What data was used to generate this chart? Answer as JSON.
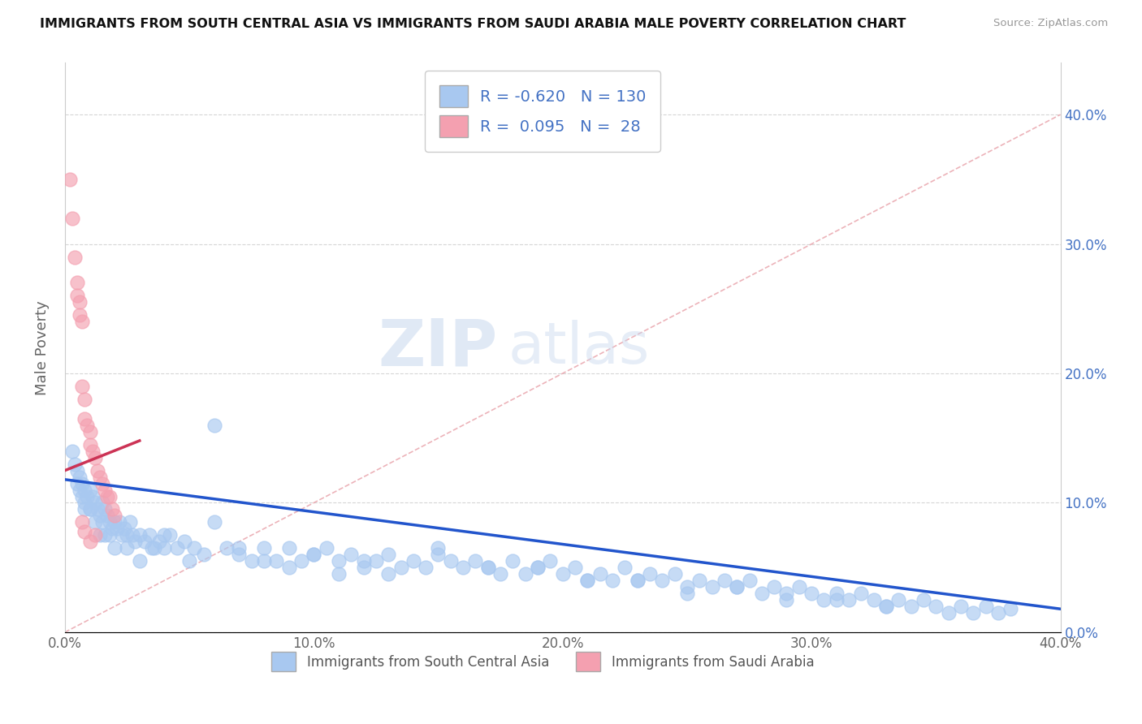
{
  "title": "IMMIGRANTS FROM SOUTH CENTRAL ASIA VS IMMIGRANTS FROM SAUDI ARABIA MALE POVERTY CORRELATION CHART",
  "source": "Source: ZipAtlas.com",
  "ylabel": "Male Poverty",
  "legend_label1": "Immigrants from South Central Asia",
  "legend_label2": "Immigrants from Saudi Arabia",
  "R1": -0.62,
  "N1": 130,
  "R2": 0.095,
  "N2": 28,
  "color1": "#a8c8f0",
  "color2": "#f4a0b0",
  "line_color1": "#2255cc",
  "line_color2": "#cc3355",
  "diag_line_color": "#e8a0a8",
  "title_color": "#111111",
  "axis_label_color": "#666666",
  "tick_color_y": "#4472c4",
  "tick_color_x": "#666666",
  "legend_text_color": "#4472c4",
  "watermark_zip_color": "#c8d8ee",
  "watermark_atlas_color": "#c8d8ee",
  "xlim": [
    0.0,
    0.4
  ],
  "ylim": [
    0.0,
    0.44
  ],
  "xticks": [
    0.0,
    0.1,
    0.2,
    0.3,
    0.4
  ],
  "yticks": [
    0.0,
    0.1,
    0.2,
    0.3,
    0.4
  ],
  "blue_line_x0": 0.0,
  "blue_line_y0": 0.118,
  "blue_line_x1": 0.4,
  "blue_line_y1": 0.018,
  "pink_line_x0": 0.0,
  "pink_line_y0": 0.125,
  "pink_line_x1": 0.03,
  "pink_line_y1": 0.148,
  "blue_x": [
    0.003,
    0.004,
    0.005,
    0.005,
    0.006,
    0.006,
    0.007,
    0.007,
    0.008,
    0.008,
    0.009,
    0.01,
    0.01,
    0.011,
    0.012,
    0.013,
    0.014,
    0.015,
    0.015,
    0.016,
    0.017,
    0.018,
    0.019,
    0.02,
    0.021,
    0.022,
    0.023,
    0.024,
    0.025,
    0.026,
    0.027,
    0.028,
    0.03,
    0.032,
    0.034,
    0.036,
    0.038,
    0.04,
    0.042,
    0.045,
    0.048,
    0.052,
    0.056,
    0.06,
    0.065,
    0.07,
    0.075,
    0.08,
    0.085,
    0.09,
    0.095,
    0.1,
    0.105,
    0.11,
    0.115,
    0.12,
    0.125,
    0.13,
    0.135,
    0.14,
    0.145,
    0.15,
    0.155,
    0.16,
    0.165,
    0.17,
    0.175,
    0.18,
    0.185,
    0.19,
    0.195,
    0.2,
    0.205,
    0.21,
    0.215,
    0.22,
    0.225,
    0.23,
    0.235,
    0.24,
    0.245,
    0.25,
    0.255,
    0.26,
    0.265,
    0.27,
    0.275,
    0.28,
    0.285,
    0.29,
    0.295,
    0.3,
    0.305,
    0.31,
    0.315,
    0.32,
    0.325,
    0.33,
    0.335,
    0.34,
    0.345,
    0.35,
    0.355,
    0.36,
    0.365,
    0.37,
    0.375,
    0.38,
    0.008,
    0.01,
    0.012,
    0.014,
    0.016,
    0.018,
    0.02,
    0.025,
    0.03,
    0.035,
    0.04,
    0.05,
    0.06,
    0.07,
    0.08,
    0.09,
    0.1,
    0.11,
    0.12,
    0.13,
    0.15,
    0.17,
    0.19,
    0.21,
    0.23,
    0.25,
    0.27,
    0.29,
    0.31,
    0.33
  ],
  "blue_y": [
    0.14,
    0.13,
    0.125,
    0.115,
    0.12,
    0.11,
    0.115,
    0.105,
    0.11,
    0.1,
    0.105,
    0.11,
    0.095,
    0.105,
    0.1,
    0.095,
    0.09,
    0.1,
    0.085,
    0.095,
    0.09,
    0.085,
    0.08,
    0.085,
    0.08,
    0.085,
    0.075,
    0.08,
    0.075,
    0.085,
    0.075,
    0.07,
    0.075,
    0.07,
    0.075,
    0.065,
    0.07,
    0.065,
    0.075,
    0.065,
    0.07,
    0.065,
    0.06,
    0.16,
    0.065,
    0.06,
    0.055,
    0.065,
    0.055,
    0.065,
    0.055,
    0.06,
    0.065,
    0.055,
    0.06,
    0.05,
    0.055,
    0.06,
    0.05,
    0.055,
    0.05,
    0.06,
    0.055,
    0.05,
    0.055,
    0.05,
    0.045,
    0.055,
    0.045,
    0.05,
    0.055,
    0.045,
    0.05,
    0.04,
    0.045,
    0.04,
    0.05,
    0.04,
    0.045,
    0.04,
    0.045,
    0.035,
    0.04,
    0.035,
    0.04,
    0.035,
    0.04,
    0.03,
    0.035,
    0.03,
    0.035,
    0.03,
    0.025,
    0.03,
    0.025,
    0.03,
    0.025,
    0.02,
    0.025,
    0.02,
    0.025,
    0.02,
    0.015,
    0.02,
    0.015,
    0.02,
    0.015,
    0.018,
    0.095,
    0.095,
    0.085,
    0.075,
    0.075,
    0.075,
    0.065,
    0.065,
    0.055,
    0.065,
    0.075,
    0.055,
    0.085,
    0.065,
    0.055,
    0.05,
    0.06,
    0.045,
    0.055,
    0.045,
    0.065,
    0.05,
    0.05,
    0.04,
    0.04,
    0.03,
    0.035,
    0.025,
    0.025,
    0.02
  ],
  "pink_x": [
    0.002,
    0.003,
    0.004,
    0.005,
    0.005,
    0.006,
    0.006,
    0.007,
    0.007,
    0.008,
    0.008,
    0.009,
    0.01,
    0.01,
    0.011,
    0.012,
    0.013,
    0.014,
    0.015,
    0.016,
    0.017,
    0.018,
    0.019,
    0.02,
    0.007,
    0.008,
    0.01,
    0.012
  ],
  "pink_y": [
    0.35,
    0.32,
    0.29,
    0.27,
    0.26,
    0.255,
    0.245,
    0.24,
    0.19,
    0.18,
    0.165,
    0.16,
    0.155,
    0.145,
    0.14,
    0.135,
    0.125,
    0.12,
    0.115,
    0.11,
    0.105,
    0.105,
    0.095,
    0.09,
    0.085,
    0.078,
    0.07,
    0.075
  ]
}
